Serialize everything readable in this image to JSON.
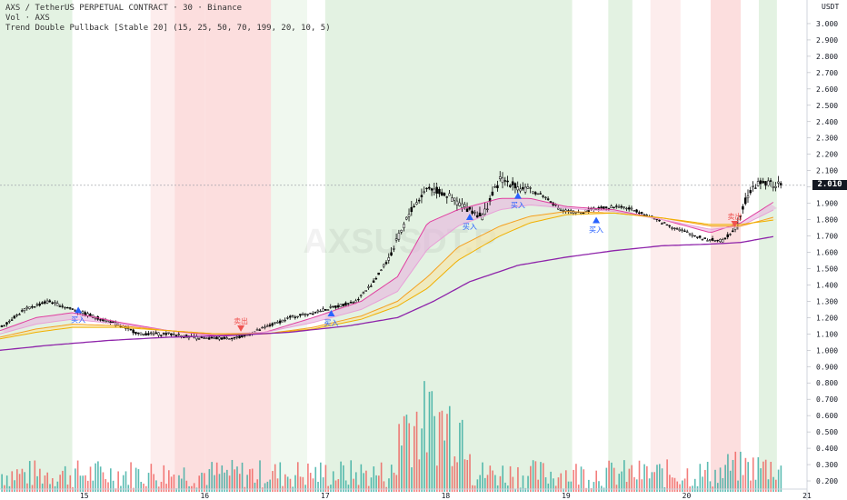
{
  "header": {
    "line1": "AXS / TetherUS PERPETUAL CONTRACT · 30 · Binance",
    "line2": "Vol · AXS",
    "line3": "Trend Double Pullback [Stable 20] (15, 25, 50, 70, 199, 20, 10, 5)"
  },
  "watermark": "AXSUSDT.P",
  "currency": "USDT",
  "last_price_label": "2.010",
  "colors": {
    "bg_green": "#e3f2e2",
    "bg_red": "#fcdede",
    "up_candle": "#26a69a",
    "down_candle": "#ef5350",
    "ma_pink": "#e040a0",
    "ma_orange": "#f5a020",
    "ma_purple": "#8e24aa",
    "ribbon_pink": "#e8b4e0",
    "ribbon_yellow": "#f7e4a6",
    "signal_blue": "#2962ff",
    "signal_red": "#ef5350"
  },
  "chart_data": {
    "type": "line",
    "xlabels": [
      "15",
      "16",
      "17",
      "18",
      "19",
      "20",
      "21"
    ],
    "ylabels": [
      "0.200",
      "0.300",
      "0.400",
      "0.500",
      "0.600",
      "0.700",
      "0.800",
      "0.900",
      "1.000",
      "1.100",
      "1.200",
      "1.300",
      "1.400",
      "1.500",
      "1.600",
      "1.700",
      "1.800",
      "1.900",
      "2.000",
      "2.100",
      "2.200",
      "2.300",
      "2.400",
      "2.500",
      "2.600",
      "2.700",
      "2.800",
      "2.900",
      "3.000"
    ],
    "ylim": [
      0.15,
      3.1
    ],
    "xlim": [
      14.3,
      21.0
    ],
    "price_path": [
      [
        14.3,
        1.14
      ],
      [
        14.5,
        1.25
      ],
      [
        14.7,
        1.3
      ],
      [
        14.9,
        1.25
      ],
      [
        15.1,
        1.2
      ],
      [
        15.3,
        1.15
      ],
      [
        15.45,
        1.1
      ],
      [
        15.7,
        1.1
      ],
      [
        16.0,
        1.07
      ],
      [
        16.3,
        1.08
      ],
      [
        16.5,
        1.14
      ],
      [
        16.7,
        1.2
      ],
      [
        17.0,
        1.25
      ],
      [
        17.25,
        1.3
      ],
      [
        17.4,
        1.42
      ],
      [
        17.55,
        1.6
      ],
      [
        17.7,
        1.85
      ],
      [
        17.85,
        2.0
      ],
      [
        18.0,
        1.95
      ],
      [
        18.15,
        1.88
      ],
      [
        18.3,
        1.82
      ],
      [
        18.45,
        2.05
      ],
      [
        18.6,
        2.0
      ],
      [
        18.8,
        1.95
      ],
      [
        18.95,
        1.86
      ],
      [
        19.1,
        1.84
      ],
      [
        19.25,
        1.87
      ],
      [
        19.45,
        1.88
      ],
      [
        19.6,
        1.85
      ],
      [
        19.8,
        1.78
      ],
      [
        20.0,
        1.72
      ],
      [
        20.15,
        1.68
      ],
      [
        20.3,
        1.67
      ],
      [
        20.4,
        1.75
      ],
      [
        20.5,
        1.95
      ],
      [
        20.6,
        2.03
      ],
      [
        20.75,
        2.01
      ]
    ],
    "series": [
      {
        "name": "",
        "color": "#e040a0",
        "values": [
          [
            14.3,
            1.12
          ],
          [
            14.6,
            1.2
          ],
          [
            14.9,
            1.23
          ],
          [
            15.3,
            1.17
          ],
          [
            15.7,
            1.12
          ],
          [
            16.1,
            1.09
          ],
          [
            16.5,
            1.11
          ],
          [
            16.9,
            1.2
          ],
          [
            17.3,
            1.3
          ],
          [
            17.6,
            1.45
          ],
          [
            17.85,
            1.78
          ],
          [
            18.1,
            1.86
          ],
          [
            18.45,
            1.93
          ],
          [
            18.7,
            1.93
          ],
          [
            19.0,
            1.88
          ],
          [
            19.4,
            1.86
          ],
          [
            19.8,
            1.8
          ],
          [
            20.2,
            1.72
          ],
          [
            20.45,
            1.78
          ],
          [
            20.75,
            1.92
          ]
        ]
      },
      {
        "name": "",
        "color": "#e8a0d8",
        "values": [
          [
            14.3,
            1.1
          ],
          [
            14.6,
            1.16
          ],
          [
            14.9,
            1.19
          ],
          [
            15.3,
            1.16
          ],
          [
            15.7,
            1.12
          ],
          [
            16.1,
            1.1
          ],
          [
            16.5,
            1.11
          ],
          [
            16.9,
            1.17
          ],
          [
            17.3,
            1.25
          ],
          [
            17.6,
            1.36
          ],
          [
            17.85,
            1.62
          ],
          [
            18.1,
            1.76
          ],
          [
            18.45,
            1.86
          ],
          [
            18.7,
            1.89
          ],
          [
            19.0,
            1.87
          ],
          [
            19.4,
            1.85
          ],
          [
            19.8,
            1.8
          ],
          [
            20.2,
            1.74
          ],
          [
            20.45,
            1.76
          ],
          [
            20.75,
            1.87
          ]
        ]
      },
      {
        "name": "",
        "color": "#f5a020",
        "values": [
          [
            14.3,
            1.08
          ],
          [
            14.6,
            1.13
          ],
          [
            14.9,
            1.16
          ],
          [
            15.3,
            1.15
          ],
          [
            15.7,
            1.12
          ],
          [
            16.1,
            1.1
          ],
          [
            16.5,
            1.1
          ],
          [
            16.9,
            1.14
          ],
          [
            17.3,
            1.21
          ],
          [
            17.6,
            1.3
          ],
          [
            17.85,
            1.45
          ],
          [
            18.1,
            1.63
          ],
          [
            18.45,
            1.76
          ],
          [
            18.7,
            1.82
          ],
          [
            19.0,
            1.85
          ],
          [
            19.4,
            1.84
          ],
          [
            19.8,
            1.81
          ],
          [
            20.2,
            1.76
          ],
          [
            20.45,
            1.76
          ],
          [
            20.75,
            1.82
          ]
        ]
      },
      {
        "name": "",
        "color": "#f0b000",
        "values": [
          [
            14.3,
            1.07
          ],
          [
            14.6,
            1.11
          ],
          [
            14.9,
            1.14
          ],
          [
            15.3,
            1.14
          ],
          [
            15.7,
            1.12
          ],
          [
            16.1,
            1.1
          ],
          [
            16.5,
            1.1
          ],
          [
            16.9,
            1.13
          ],
          [
            17.3,
            1.19
          ],
          [
            17.6,
            1.27
          ],
          [
            17.85,
            1.38
          ],
          [
            18.1,
            1.55
          ],
          [
            18.45,
            1.7
          ],
          [
            18.7,
            1.78
          ],
          [
            19.0,
            1.83
          ],
          [
            19.4,
            1.84
          ],
          [
            19.8,
            1.81
          ],
          [
            20.2,
            1.77
          ],
          [
            20.45,
            1.77
          ],
          [
            20.75,
            1.8
          ]
        ]
      },
      {
        "name": "",
        "color": "#8e24aa",
        "values": [
          [
            14.3,
            1.0
          ],
          [
            14.7,
            1.03
          ],
          [
            15.2,
            1.06
          ],
          [
            15.7,
            1.08
          ],
          [
            16.2,
            1.09
          ],
          [
            16.7,
            1.11
          ],
          [
            17.2,
            1.15
          ],
          [
            17.6,
            1.2
          ],
          [
            17.9,
            1.3
          ],
          [
            18.2,
            1.42
          ],
          [
            18.6,
            1.52
          ],
          [
            19.0,
            1.57
          ],
          [
            19.4,
            1.61
          ],
          [
            19.8,
            1.64
          ],
          [
            20.2,
            1.65
          ],
          [
            20.45,
            1.66
          ],
          [
            20.75,
            1.7
          ]
        ]
      }
    ],
    "volume": {
      "ymax": 0.95,
      "note": "volume bars drawn on same axis from 0.2 baseline"
    },
    "bg_bands": [
      {
        "from": 14.3,
        "to": 14.9,
        "type": "green"
      },
      {
        "from": 15.55,
        "to": 15.75,
        "type": "red_light"
      },
      {
        "from": 15.75,
        "to": 16.0,
        "type": "red"
      },
      {
        "from": 16.0,
        "to": 16.55,
        "type": "red"
      },
      {
        "from": 16.55,
        "to": 16.85,
        "type": "green_light"
      },
      {
        "from": 17.0,
        "to": 19.05,
        "type": "green"
      },
      {
        "from": 19.35,
        "to": 19.55,
        "type": "green"
      },
      {
        "from": 19.7,
        "to": 19.95,
        "type": "red_light"
      },
      {
        "from": 20.2,
        "to": 20.45,
        "type": "red"
      },
      {
        "from": 20.6,
        "to": 20.75,
        "type": "green"
      }
    ],
    "signals": [
      {
        "x": 14.95,
        "y": 1.25,
        "label": "买入",
        "dir": "buy"
      },
      {
        "x": 16.3,
        "y": 1.13,
        "label": "卖出",
        "dir": "sell"
      },
      {
        "x": 17.05,
        "y": 1.23,
        "label": "买入",
        "dir": "buy"
      },
      {
        "x": 18.2,
        "y": 1.82,
        "label": "买入",
        "dir": "buy"
      },
      {
        "x": 18.6,
        "y": 1.95,
        "label": "买入",
        "dir": "buy"
      },
      {
        "x": 19.25,
        "y": 1.8,
        "label": "买入",
        "dir": "buy"
      },
      {
        "x": 20.4,
        "y": 1.77,
        "label": "卖出",
        "dir": "sell"
      }
    ],
    "last_price": 2.01
  }
}
